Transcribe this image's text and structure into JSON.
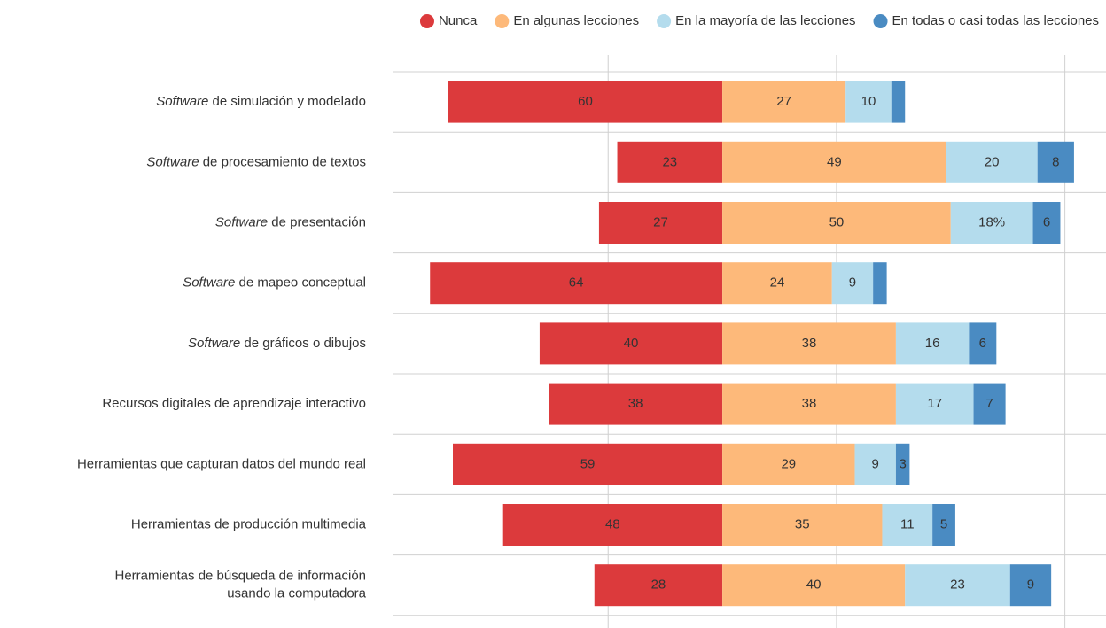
{
  "chart_data": {
    "type": "diverging_bar",
    "categories": [
      "Software de simulación y modelado",
      "Software de procesamiento de textos",
      "Software de presentación",
      "Software de mapeo conceptual",
      "Software de gráficos o dibujos",
      "Recursos digitales de aprendizaje interactivo",
      "Herramientas que capturan datos del mundo real",
      "Herramientas de producción multimedia",
      "Herramientas de búsqueda de información\nusando la computadora"
    ],
    "italic_first_word": [
      true,
      true,
      true,
      true,
      true,
      false,
      false,
      false,
      false
    ],
    "series": [
      {
        "name": "Nunca",
        "color": "#dc3a3c",
        "values": [
          60,
          23,
          27,
          64,
          40,
          38,
          59,
          48,
          28
        ]
      },
      {
        "name": "En algunas lecciones",
        "color": "#fdb97a",
        "values": [
          27,
          49,
          50,
          24,
          38,
          38,
          29,
          35,
          40
        ]
      },
      {
        "name": "En la mayoría de las lecciones",
        "color": "#b4dced",
        "values": [
          10,
          20,
          18,
          9,
          16,
          17,
          9,
          11,
          23
        ],
        "value_labels": [
          "10",
          "20",
          "18%",
          "9",
          "16",
          "17",
          "9",
          "11",
          "23"
        ]
      },
      {
        "name": "En todas o casi todas las lecciones",
        "color": "#4a8bc2",
        "values": [
          3,
          8,
          6,
          3,
          6,
          7,
          3,
          5,
          9
        ],
        "value_labels": [
          null,
          "8",
          "6",
          null,
          "6",
          "7",
          "3",
          "5",
          "9"
        ]
      }
    ],
    "xlim": [
      -72,
      84
    ],
    "xticks": [
      -25,
      25,
      75
    ],
    "grid": true
  }
}
